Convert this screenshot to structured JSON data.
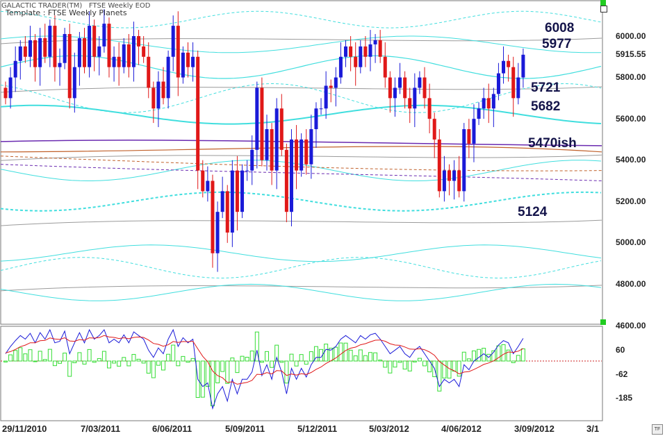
{
  "header": {
    "app": "GALACTIC TRADER(TM)",
    "chart": "FTSE Weekly EOD",
    "template": "Template : FTSE Weekly Planets"
  },
  "level_labels": [
    "6008",
    "5977",
    "5721",
    "5682",
    "5470ish",
    "5124"
  ],
  "price_axis": {
    "ticks": [
      "6000.00",
      "5800.00",
      "5600.00",
      "5400.00",
      "5200.00",
      "5000.00",
      "4800.00",
      "4600.00"
    ],
    "last_price": "5915.55"
  },
  "indicator_axis": {
    "ticks": [
      "60",
      "-62",
      "-185"
    ]
  },
  "date_axis": {
    "ticks": [
      "29/11/2010",
      "7/03/2011",
      "6/06/2011",
      "5/09/2011",
      "5/12/2011",
      "5/03/2012",
      "4/06/2012",
      "3/09/2012",
      "3/1"
    ]
  },
  "colors": {
    "up": "#1a1ad8",
    "down": "#e01818",
    "planet_lines": "#40dede",
    "macd": "#1a1ad8",
    "signal": "#e01818",
    "histogram": "#33dd33"
  },
  "icons": {
    "panel_button": "square-button-icon",
    "timeframe": "tf-icon"
  },
  "tf_label": "TF",
  "chart_data": {
    "type": "candlestick",
    "title": "",
    "ylim": [
      4600,
      6100
    ],
    "closes": [
      5700,
      5800,
      5880,
      5950,
      5900,
      5980,
      5850,
      5990,
      5900,
      6050,
      5850,
      5870,
      6010,
      5700,
      5850,
      5990,
      5850,
      6050,
      5900,
      5950,
      6060,
      5850,
      5900,
      5850,
      5960,
      5850,
      6000,
      5950,
      5900,
      5750,
      5650,
      5780,
      5700,
      5900,
      6050,
      5800,
      5920,
      5850,
      5900,
      5350,
      5250,
      5300,
      4950,
      5150,
      5250,
      5050,
      5350,
      5150,
      5350,
      5350,
      5450,
      5750,
      5400,
      5550,
      5350,
      5650,
      5450,
      5150,
      5500,
      5350,
      5500,
      5380,
      5550,
      5650,
      5650,
      5760,
      5750,
      5800,
      5900,
      5950,
      5900,
      5850,
      5950,
      5900,
      5960,
      5980,
      5900,
      5800,
      5700,
      5750,
      5800,
      5700,
      5650,
      5750,
      5800,
      5700,
      5600,
      5500,
      5250,
      5350,
      5300,
      5350,
      5250,
      5550,
      5480,
      5600,
      5650,
      5700,
      5650,
      5720,
      5820,
      5880,
      5850,
      5700,
      5800,
      5910
    ],
    "macd_ticks": [
      60,
      -62,
      -185
    ],
    "level_annotations": [
      6008,
      5977,
      5721,
      5682,
      5470,
      5124
    ]
  }
}
